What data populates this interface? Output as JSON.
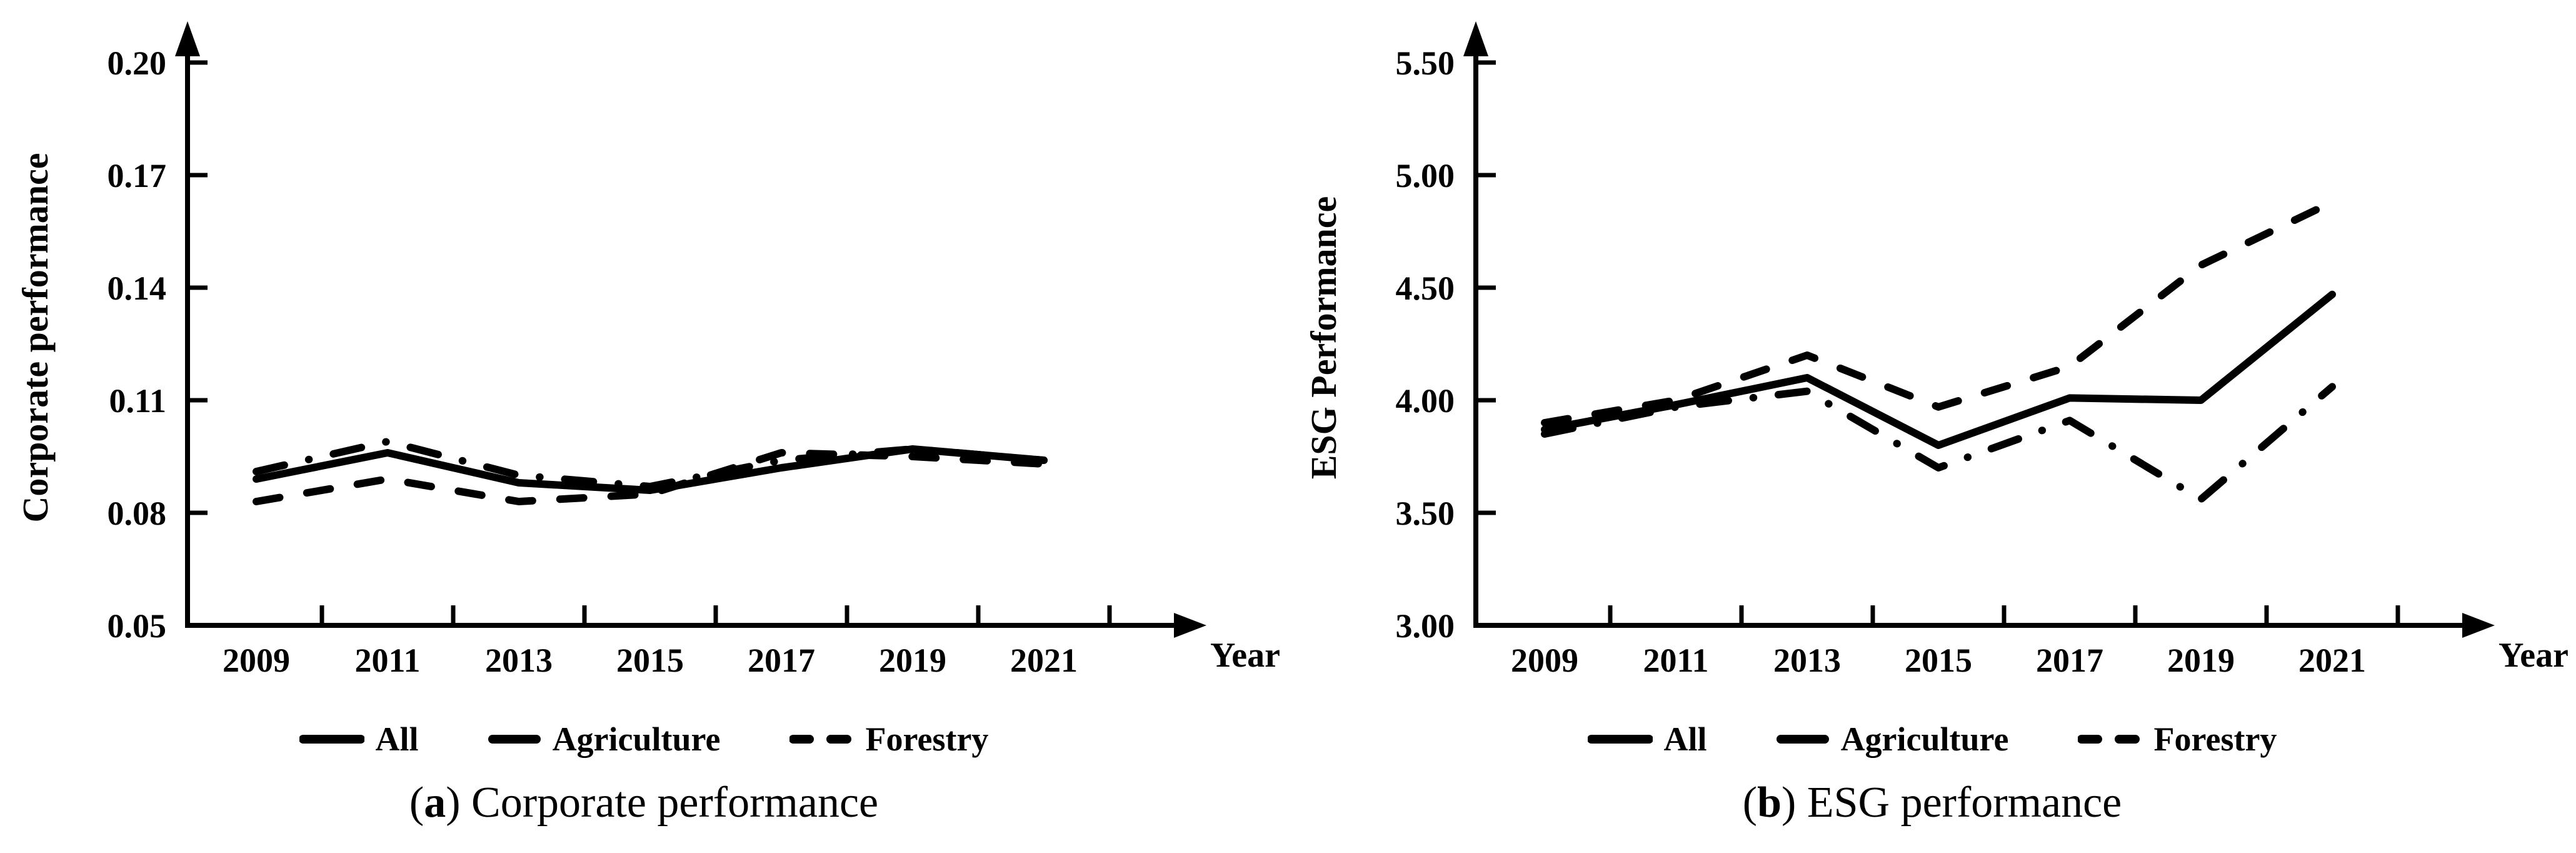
{
  "chart_data": [
    {
      "type": "line",
      "panel": {
        "open": "(",
        "letter": "a",
        "close": ")",
        "rest": " Corporate performance"
      },
      "xlabel": "Year",
      "ylabel": "Corporate performance",
      "x": [
        2009,
        2011,
        2013,
        2015,
        2017,
        2019,
        2021
      ],
      "ylim": [
        0.05,
        0.2
      ],
      "ytick_step": 0.03,
      "ytick_decimals": 2,
      "grid": false,
      "legend_position": "bottom",
      "axis_color": "#000000",
      "series": [
        {
          "name": "All",
          "style": "solid",
          "values": [
            0.089,
            0.096,
            0.088,
            0.086,
            0.092,
            0.097,
            0.094
          ]
        },
        {
          "name": "Agriculture",
          "style": "dash-dot",
          "values": [
            0.091,
            0.099,
            0.09,
            0.087,
            0.094,
            0.097,
            0.094
          ]
        },
        {
          "name": "Forestry",
          "style": "dashed",
          "values": [
            0.083,
            0.089,
            0.083,
            0.085,
            0.096,
            0.095,
            0.093
          ]
        }
      ]
    },
    {
      "type": "line",
      "panel": {
        "open": "(",
        "letter": "b",
        "close": ")",
        "rest": " ESG performance"
      },
      "xlabel": "Year",
      "ylabel": "ESG Performance",
      "x": [
        2009,
        2011,
        2013,
        2015,
        2017,
        2019,
        2021
      ],
      "ylim": [
        3.0,
        5.5
      ],
      "ytick_step": 0.5,
      "ytick_decimals": 2,
      "grid": false,
      "legend_position": "bottom",
      "axis_color": "#000000",
      "series": [
        {
          "name": "All",
          "style": "solid",
          "values": [
            3.87,
            3.98,
            4.1,
            3.8,
            4.01,
            4.0,
            4.47
          ]
        },
        {
          "name": "Agriculture",
          "style": "dash-dot",
          "values": [
            3.85,
            3.97,
            4.04,
            3.7,
            3.91,
            3.56,
            4.06
          ]
        },
        {
          "name": "Forestry",
          "style": "dashed",
          "values": [
            3.9,
            4.0,
            4.2,
            3.97,
            4.15,
            4.6,
            4.88
          ]
        }
      ]
    }
  ]
}
